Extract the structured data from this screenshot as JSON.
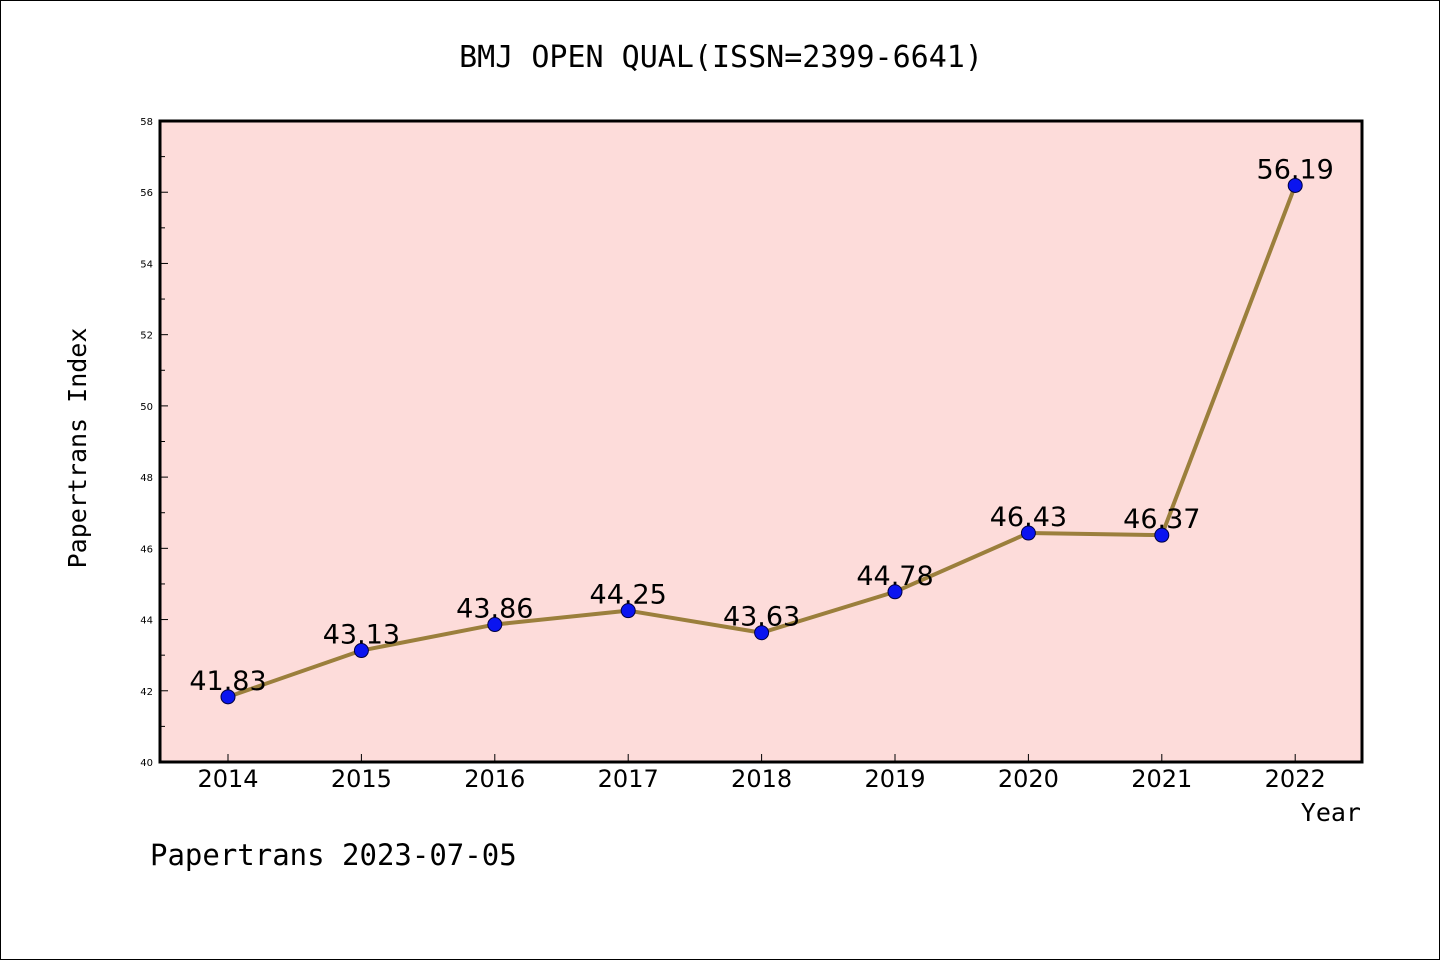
{
  "chart_data": {
    "type": "line",
    "title": "BMJ OPEN QUAL(ISSN=2399-6641)",
    "xlabel": "Year",
    "ylabel": "Papertrans Index",
    "categories": [
      "2014",
      "2015",
      "2016",
      "2017",
      "2018",
      "2019",
      "2020",
      "2021",
      "2022"
    ],
    "series": [
      {
        "values": [
          41.83,
          43.13,
          43.86,
          44.25,
          43.63,
          44.78,
          46.43,
          46.37,
          56.19
        ],
        "data_labels": [
          "41.83",
          "43.13",
          "43.86",
          "44.25",
          "43.63",
          "44.78",
          "46.43",
          "46.37",
          "56.19"
        ]
      }
    ],
    "ylim": [
      40,
      58
    ],
    "yticks": [
      40,
      42,
      44,
      46,
      48,
      50,
      52,
      54,
      56,
      58
    ],
    "grid": false,
    "legend": "none",
    "colors": {
      "plot_background": "#FDDCDA",
      "line": "#9B7F3C",
      "marker": "#0A14F0"
    }
  },
  "footer": "Papertrans 2023-07-05"
}
